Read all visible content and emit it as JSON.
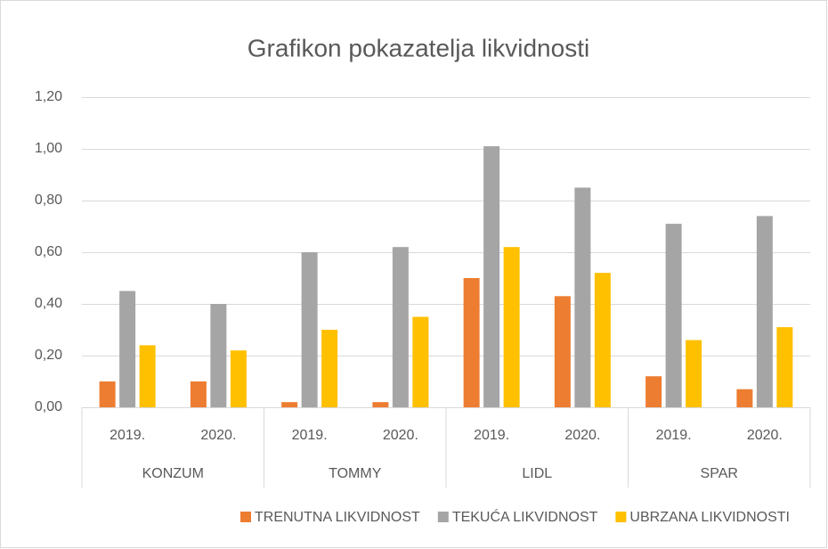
{
  "chart_data": {
    "type": "bar",
    "title": "Grafikon pokazatelja likvidnosti",
    "categories": [
      "2019.",
      "2020.",
      "2019.",
      "2020.",
      "2019.",
      "2020.",
      "2019.",
      "2020."
    ],
    "groups": [
      "KONZUM",
      "TOMMY",
      "LIDL",
      "SPAR"
    ],
    "series": [
      {
        "name": "TRENUTNA LIKVIDNOST",
        "color": "#ed7d31",
        "values": [
          0.1,
          0.1,
          0.02,
          0.02,
          0.5,
          0.43,
          0.12,
          0.07
        ]
      },
      {
        "name": "TEKUĆA LIKVIDNOST",
        "color": "#a5a5a5",
        "values": [
          0.45,
          0.4,
          0.6,
          0.62,
          1.01,
          0.85,
          0.71,
          0.74
        ]
      },
      {
        "name": "UBRZANA LIKVIDNOSTI",
        "color": "#ffc000",
        "values": [
          0.24,
          0.22,
          0.3,
          0.35,
          0.62,
          0.52,
          0.26,
          0.31
        ]
      }
    ],
    "ylim": [
      0,
      1.2
    ],
    "yticks": [
      {
        "value": 0,
        "label": "0,00"
      },
      {
        "value": 0.2,
        "label": "0,20"
      },
      {
        "value": 0.4,
        "label": "0,40"
      },
      {
        "value": 0.6,
        "label": "0,60"
      },
      {
        "value": 0.8,
        "label": "0,80"
      },
      {
        "value": 1.0,
        "label": "1,00"
      },
      {
        "value": 1.2,
        "label": "1,20"
      }
    ],
    "grid": true,
    "legend": "bottom"
  }
}
